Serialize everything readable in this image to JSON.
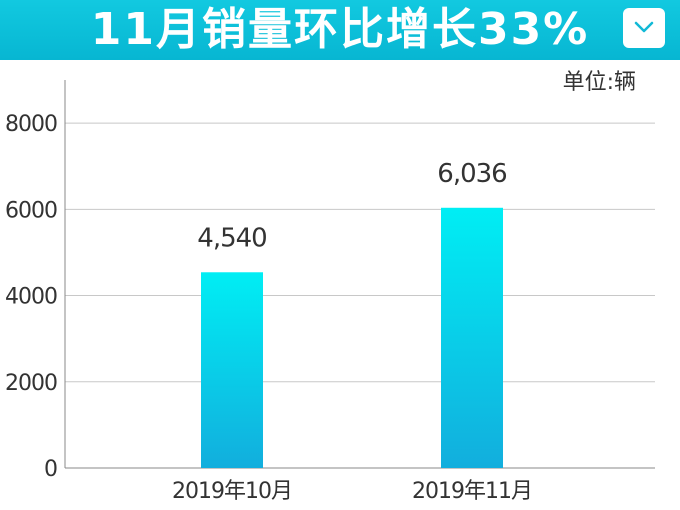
{
  "header": {
    "title": "11月销量环比增长33%",
    "dropdown_icon": "chevron-down-icon",
    "background_color": "#0fc2dc"
  },
  "unit_label": "单位:辆",
  "chart_data": {
    "type": "bar",
    "categories": [
      "2019年10月",
      "2019年11月"
    ],
    "values": [
      4540,
      6036
    ],
    "data_labels": [
      "4,540",
      "6,036"
    ],
    "title": "11月销量环比增长33%",
    "xlabel": "",
    "ylabel": "",
    "ylim": [
      0,
      9000
    ],
    "yticks": [
      0,
      2000,
      4000,
      6000,
      8000
    ],
    "grid": true,
    "legend": "none",
    "bar_color_top": "#00eef4",
    "bar_color_bottom": "#12aedd"
  }
}
